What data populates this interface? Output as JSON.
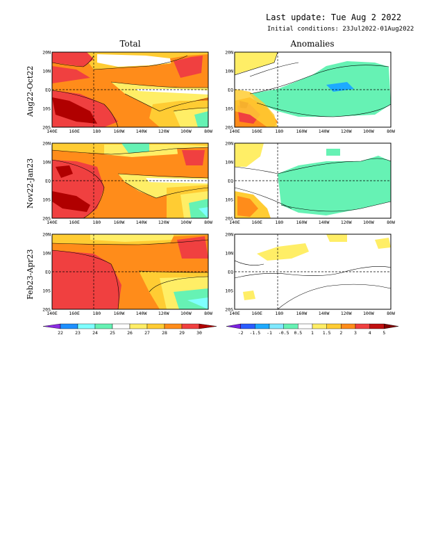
{
  "header": {
    "last_update": "Last update: Tue Aug  2 2022",
    "initial_conditions": "Initial conditions: 23Jul2022-01Aug2022"
  },
  "columns": {
    "total": "Total",
    "anomalies": "Anomalies"
  },
  "rows": [
    {
      "label": "Aug22-Oct22"
    },
    {
      "label": "Nov22-Jan23"
    },
    {
      "label": "Feb23-Apr23"
    }
  ],
  "axes": {
    "lat_labels": [
      "20N",
      "10N",
      "EQ",
      "10S",
      "20S"
    ],
    "lon_labels": [
      "140E",
      "160E",
      "180",
      "160W",
      "140W",
      "120W",
      "100W",
      "80W"
    ]
  },
  "total_colorbar": {
    "ticks": [
      "22",
      "23",
      "24",
      "25",
      "26",
      "27",
      "28",
      "29",
      "30"
    ],
    "colors": [
      "#8a2be2",
      "#1e90ff",
      "#7fffff",
      "#66f2b4",
      "#ffffff",
      "#ffee66",
      "#ffcc33",
      "#ff8c1a",
      "#f04040",
      "#b00000"
    ]
  },
  "anomaly_colorbar": {
    "ticks": [
      "-2",
      "-1.5",
      "-1",
      "-0.5",
      "0.5",
      "1",
      "1.5",
      "2",
      "3",
      "4",
      "5"
    ],
    "colors": [
      "#7b20e0",
      "#2a5cff",
      "#1eaaff",
      "#7fe9ff",
      "#66f2b4",
      "#ffffff",
      "#ffee66",
      "#ffcc33",
      "#ff8c1a",
      "#f04040",
      "#c01010",
      "#800000"
    ]
  }
}
